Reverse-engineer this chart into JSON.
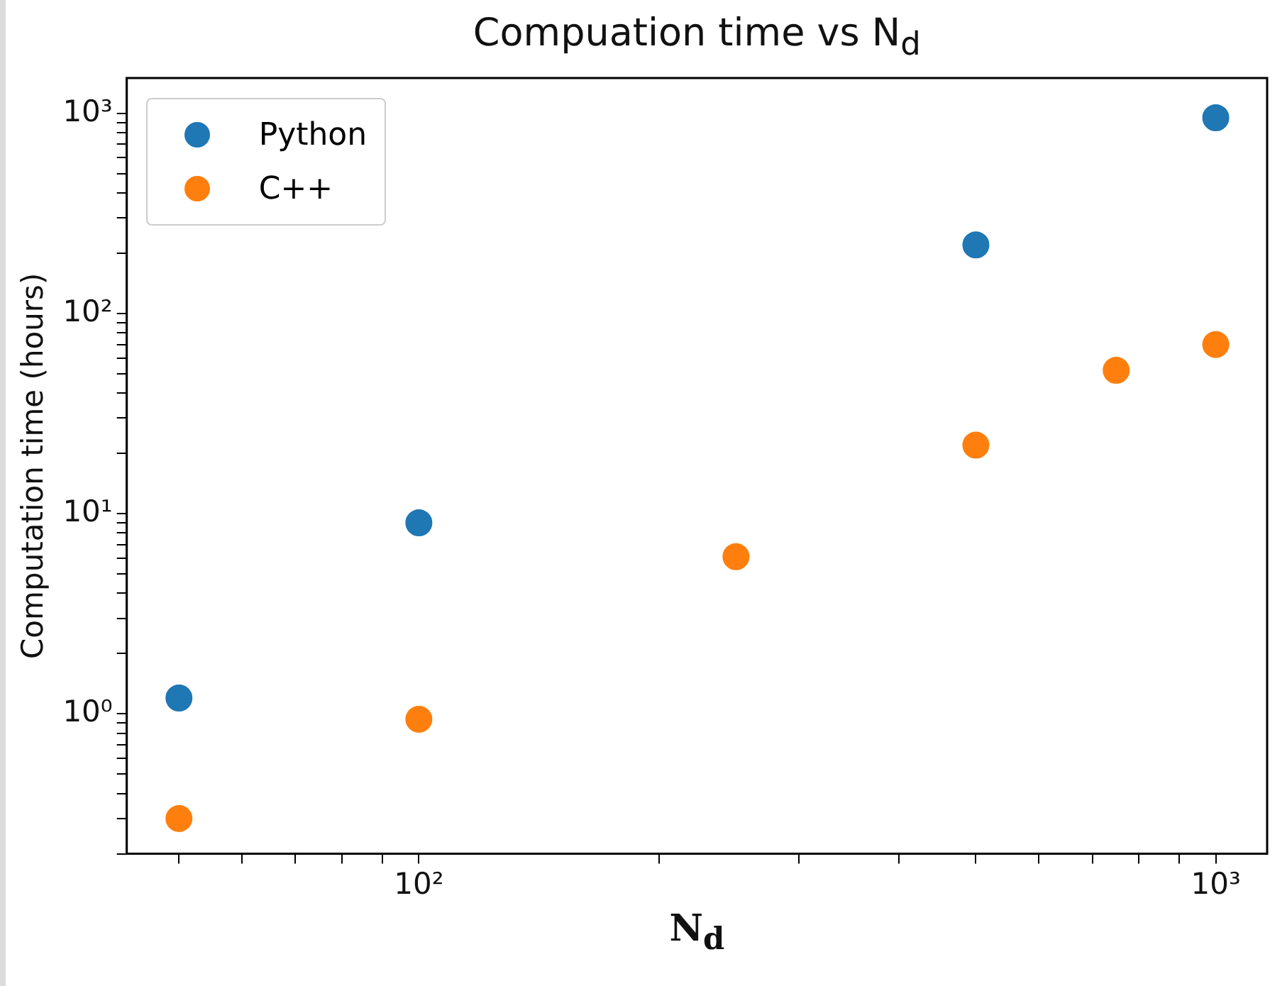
{
  "chart_data": {
    "type": "scatter",
    "title": "Compuation time vs N$_{d}$",
    "xlabel": "N$_{d}$",
    "ylabel": "Computation time (hours)",
    "log": "xy",
    "grid": false,
    "legend": "top left",
    "marker": "circle",
    "xlim": [
      43,
      1160
    ],
    "ylim": [
      0.2,
      1500
    ],
    "xticks": [
      {
        "value": 50,
        "label": null
      },
      {
        "value": 60,
        "label": null
      },
      {
        "value": 70,
        "label": null
      },
      {
        "value": 80,
        "label": null
      },
      {
        "value": 90,
        "label": null
      },
      {
        "value": 100,
        "label": "10²"
      },
      {
        "value": 200,
        "label": null
      },
      {
        "value": 300,
        "label": null
      },
      {
        "value": 400,
        "label": null
      },
      {
        "value": 500,
        "label": null
      },
      {
        "value": 600,
        "label": null
      },
      {
        "value": 700,
        "label": null
      },
      {
        "value": 800,
        "label": null
      },
      {
        "value": 900,
        "label": null
      },
      {
        "value": 1000,
        "label": "10³"
      }
    ],
    "yticks": [
      {
        "value": 0.2,
        "label": null
      },
      {
        "value": 0.3,
        "label": null
      },
      {
        "value": 0.4,
        "label": null
      },
      {
        "value": 0.5,
        "label": null
      },
      {
        "value": 0.6,
        "label": null
      },
      {
        "value": 0.7,
        "label": null
      },
      {
        "value": 0.8,
        "label": null
      },
      {
        "value": 0.9,
        "label": null
      },
      {
        "value": 1,
        "label": "10⁰"
      },
      {
        "value": 2,
        "label": null
      },
      {
        "value": 3,
        "label": null
      },
      {
        "value": 4,
        "label": null
      },
      {
        "value": 5,
        "label": null
      },
      {
        "value": 6,
        "label": null
      },
      {
        "value": 7,
        "label": null
      },
      {
        "value": 8,
        "label": null
      },
      {
        "value": 9,
        "label": null
      },
      {
        "value": 10,
        "label": "10¹"
      },
      {
        "value": 20,
        "label": null
      },
      {
        "value": 30,
        "label": null
      },
      {
        "value": 40,
        "label": null
      },
      {
        "value": 50,
        "label": null
      },
      {
        "value": 60,
        "label": null
      },
      {
        "value": 70,
        "label": null
      },
      {
        "value": 80,
        "label": null
      },
      {
        "value": 90,
        "label": null
      },
      {
        "value": 100,
        "label": "10²"
      },
      {
        "value": 200,
        "label": null
      },
      {
        "value": 300,
        "label": null
      },
      {
        "value": 400,
        "label": null
      },
      {
        "value": 500,
        "label": null
      },
      {
        "value": 600,
        "label": null
      },
      {
        "value": 700,
        "label": null
      },
      {
        "value": 800,
        "label": null
      },
      {
        "value": 900,
        "label": null
      },
      {
        "value": 1000,
        "label": "10³"
      }
    ],
    "series": [
      {
        "name": "Python",
        "color": "#1f77b4",
        "x": [
          50,
          100,
          500,
          1000
        ],
        "values": [
          1.2,
          9,
          220,
          950
        ]
      },
      {
        "name": "C++",
        "color": "#ff7f0e",
        "x": [
          50,
          100,
          250,
          500,
          750,
          1000
        ],
        "values": [
          0.3,
          0.94,
          6.1,
          22,
          52,
          70
        ]
      }
    ]
  }
}
